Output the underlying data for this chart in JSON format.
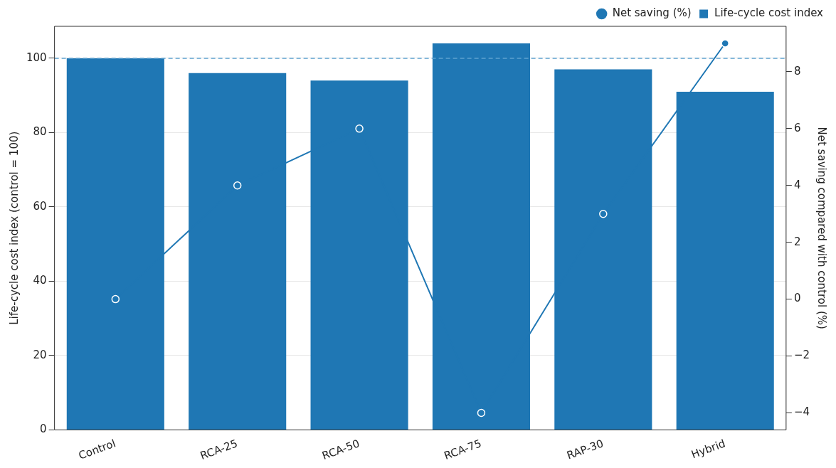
{
  "chart_data": {
    "type": "bar",
    "xlabel": null,
    "ylabel": "Life-cycle cost index (control = 100)",
    "y2label": "Net saving compared with control (%)",
    "categories": [
      "Control",
      "RCA-25",
      "RCA-50",
      "RCA-75",
      "RAP-30",
      "Hybrid"
    ],
    "series": [
      {
        "name": "Life-cycle cost index",
        "color": "#1f77b4",
        "values": [
          100,
          96,
          94,
          104,
          97,
          91
        ]
      },
      {
        "name": "Net saving (%)",
        "type": "line",
        "axis": "y2",
        "color": "#1f77b4",
        "values": [
          0,
          4,
          6,
          -4,
          3,
          9
        ]
      }
    ],
    "ylim": [
      0,
      108.6
    ],
    "yticks": [
      0,
      20,
      40,
      60,
      80,
      100
    ],
    "y2lim": [
      -4.6,
      9.6
    ],
    "y2ticks": [
      {
        "value": -4,
        "label": "−4"
      },
      {
        "value": -2,
        "label": "−2"
      },
      0,
      2,
      4,
      6,
      8
    ],
    "ref_lines": [
      {
        "axis": "y",
        "value": 100,
        "label": null,
        "color": "#5fa2d0",
        "line_style": "dashed"
      }
    ],
    "grid": "y",
    "legend": "top right",
    "marker": "circle",
    "line_style": "solid"
  }
}
